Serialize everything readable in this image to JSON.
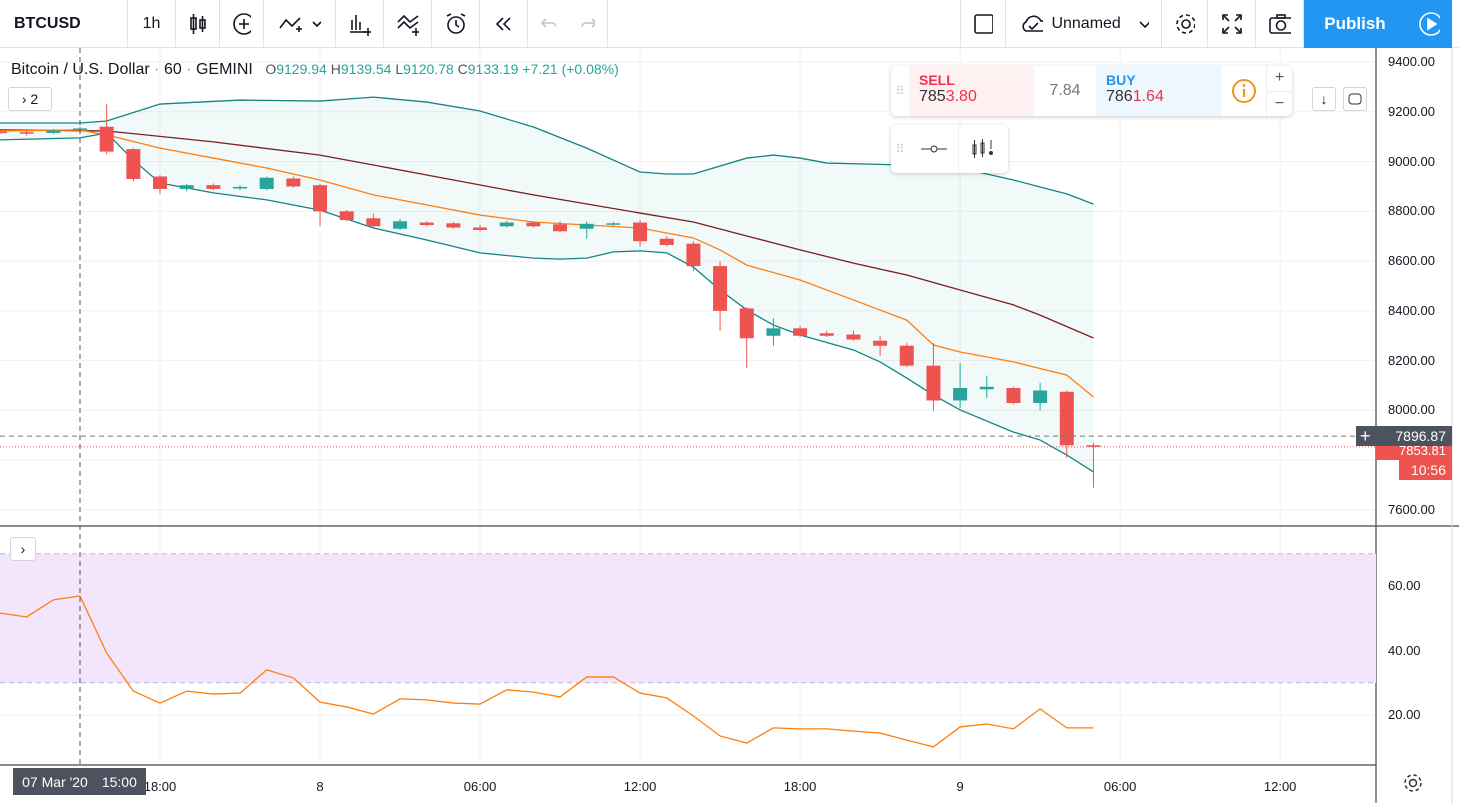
{
  "toolbar": {
    "symbol": "BTCUSD",
    "interval": "1h",
    "layout_name": "Unnamed",
    "publish": "Publish",
    "icons": [
      "candles-icon",
      "add-indicator-icon",
      "compare-icon",
      "chevron-down-icon",
      "indicators-icon",
      "templates-icon",
      "alert-icon",
      "replay-icon",
      "undo-icon",
      "redo-icon",
      "fullscreen-toggle-icon",
      "cloud-icon",
      "gear-icon",
      "expand-icon",
      "camera-icon",
      "play-icon"
    ]
  },
  "legend": {
    "title": "Bitcoin / U.S. Dollar",
    "interval": "60",
    "exchange": "GEMINI",
    "o_label": "O",
    "o": "9129.94",
    "h_label": "H",
    "h": "9139.54",
    "l_label": "L",
    "l": "9120.78",
    "c_label": "C",
    "c": "9133.19",
    "change": "+7.21 (+0.08%)",
    "indicators_collapsed": "2"
  },
  "trade": {
    "sell_label": "SELL",
    "sell_main": "785",
    "sell_hl": "3.80",
    "spread": "7.84",
    "buy_label": "BUY",
    "buy_main": "786",
    "buy_hl": "1.64",
    "plus": "+",
    "minus": "−"
  },
  "price_axis": {
    "labels": [
      "9400.00",
      "9200.00",
      "9000.00",
      "8800.00",
      "8600.00",
      "8400.00",
      "8200.00",
      "8000.00",
      "7600.00"
    ],
    "crosshair_price": "7896.87",
    "last_price": "7853.81",
    "countdown": "10:56"
  },
  "rsi_axis": {
    "labels": [
      "60.00",
      "40.00",
      "20.00"
    ]
  },
  "time_axis": {
    "labels": [
      "18:00",
      "8",
      "06:00",
      "12:00",
      "18:00",
      "9",
      "06:00",
      "12:00"
    ],
    "crosshair_date": "07 Mar '20",
    "crosshair_time": "15:00"
  },
  "colors": {
    "up": "#26a69a",
    "down": "#ef5350",
    "bb": "#138484",
    "basis": "#7b1e1e",
    "ema": "#ff7f0e",
    "rsi": "#ff7f0e",
    "rsi_band": "#f3e5fc",
    "accent": "#2196f3"
  },
  "chart_data": [
    {
      "type": "candlestick",
      "x_unit": "hours since 07 Mar '20 15:00",
      "ylim": [
        7550,
        9450
      ],
      "candles": [
        [
          -3,
          9120,
          9125,
          9112,
          9118
        ],
        [
          -2,
          9118,
          9125,
          9105,
          9112
        ],
        [
          -1,
          9115,
          9130,
          9110,
          9125
        ],
        [
          0,
          9129.94,
          9139.54,
          9120.78,
          9133.19
        ],
        [
          1,
          9140,
          9230,
          9030,
          9040
        ],
        [
          2,
          9050,
          9055,
          8920,
          8930
        ],
        [
          3,
          8940,
          8945,
          8870,
          8890
        ],
        [
          4,
          8890,
          8910,
          8880,
          8905
        ],
        [
          5,
          8905,
          8912,
          8885,
          8890
        ],
        [
          6,
          8892,
          8905,
          8885,
          8898
        ],
        [
          7,
          8890,
          8940,
          8885,
          8935
        ],
        [
          8,
          8932,
          8940,
          8895,
          8900
        ],
        [
          9,
          8905,
          8910,
          8740,
          8800
        ],
        [
          10,
          8800,
          8805,
          8760,
          8765
        ],
        [
          11,
          8772,
          8790,
          8735,
          8740
        ],
        [
          12,
          8730,
          8770,
          8725,
          8760
        ],
        [
          13,
          8755,
          8760,
          8740,
          8745
        ],
        [
          14,
          8752,
          8758,
          8730,
          8735
        ],
        [
          15,
          8735,
          8745,
          8720,
          8725
        ],
        [
          16,
          8740,
          8762,
          8735,
          8755
        ],
        [
          17,
          8755,
          8760,
          8735,
          8740
        ],
        [
          18,
          8748,
          8760,
          8715,
          8720
        ],
        [
          19,
          8730,
          8760,
          8690,
          8750
        ],
        [
          20,
          8748,
          8758,
          8742,
          8752
        ],
        [
          21,
          8755,
          8765,
          8660,
          8680
        ],
        [
          22,
          8690,
          8700,
          8660,
          8665
        ],
        [
          23,
          8670,
          8680,
          8560,
          8580
        ],
        [
          24,
          8580,
          8600,
          8320,
          8400
        ],
        [
          25,
          8410,
          8415,
          8170,
          8290
        ],
        [
          26,
          8300,
          8370,
          8260,
          8330
        ],
        [
          27,
          8330,
          8340,
          8295,
          8300
        ],
        [
          28,
          8310,
          8320,
          8295,
          8300
        ],
        [
          29,
          8305,
          8320,
          8280,
          8285
        ],
        [
          30,
          8280,
          8300,
          8220,
          8260
        ],
        [
          31,
          8260,
          8270,
          8175,
          8180
        ],
        [
          32,
          8180,
          8270,
          8000,
          8040
        ],
        [
          33,
          8040,
          8190,
          8010,
          8090
        ],
        [
          34,
          8085,
          8140,
          8050,
          8095
        ],
        [
          35,
          8090,
          8095,
          8025,
          8030
        ],
        [
          36,
          8030,
          8110,
          8000,
          8080
        ],
        [
          37,
          8075,
          8080,
          7810,
          7860
        ],
        [
          38,
          7860,
          7870,
          7690,
          7853.81
        ]
      ],
      "series": [
        {
          "name": "BB upper",
          "points": [
            [
              -3,
              9155
            ],
            [
              0,
              9155
            ],
            [
              1,
              9163
            ],
            [
              3,
              9231
            ],
            [
              6,
              9247
            ],
            [
              9,
              9243
            ],
            [
              11,
              9259
            ],
            [
              13,
              9239
            ],
            [
              15,
              9203
            ],
            [
              17,
              9139
            ],
            [
              19,
              9054
            ],
            [
              21,
              8958
            ],
            [
              22,
              8950
            ],
            [
              23,
              8950
            ],
            [
              25,
              9014
            ],
            [
              26,
              9026
            ],
            [
              27,
              9014
            ],
            [
              28,
              8994
            ],
            [
              31,
              8986
            ],
            [
              33,
              8974
            ],
            [
              35,
              8926
            ],
            [
              36,
              8898
            ],
            [
              37,
              8870
            ],
            [
              38,
              8829
            ]
          ]
        },
        {
          "name": "BB lower",
          "points": [
            [
              -3,
              9087
            ],
            [
              0,
              9095
            ],
            [
              1,
              9115
            ],
            [
              2,
              9006
            ],
            [
              3,
              8914
            ],
            [
              5,
              8874
            ],
            [
              7,
              8846
            ],
            [
              9,
              8805
            ],
            [
              11,
              8733
            ],
            [
              13,
              8685
            ],
            [
              15,
              8633
            ],
            [
              17,
              8612
            ],
            [
              18,
              8608
            ],
            [
              19,
              8612
            ],
            [
              20,
              8637
            ],
            [
              21,
              8641
            ],
            [
              22,
              8633
            ],
            [
              23,
              8576
            ],
            [
              24,
              8484
            ],
            [
              25,
              8404
            ],
            [
              26,
              8343
            ],
            [
              27,
              8303
            ],
            [
              29,
              8243
            ],
            [
              30,
              8195
            ],
            [
              31,
              8130
            ],
            [
              32,
              8062
            ],
            [
              33,
              8002
            ],
            [
              35,
              7913
            ],
            [
              36,
              7881
            ],
            [
              37,
              7821
            ],
            [
              38,
              7753
            ]
          ]
        },
        {
          "name": "BB basis",
          "points": [
            [
              -3,
              9127
            ],
            [
              1,
              9123
            ],
            [
              5,
              9079
            ],
            [
              9,
              9026
            ],
            [
              13,
              8946
            ],
            [
              17,
              8866
            ],
            [
              21,
              8793
            ],
            [
              23,
              8757
            ],
            [
              25,
              8701
            ],
            [
              27,
              8645
            ],
            [
              29,
              8592
            ],
            [
              31,
              8544
            ],
            [
              33,
              8484
            ],
            [
              35,
              8424
            ],
            [
              36,
              8383
            ],
            [
              38,
              8291
            ]
          ]
        },
        {
          "name": "EMA",
          "points": [
            [
              -3,
              9123
            ],
            [
              0,
              9127
            ],
            [
              1,
              9107
            ],
            [
              3,
              9054
            ],
            [
              5,
              9014
            ],
            [
              7,
              8974
            ],
            [
              9,
              8926
            ],
            [
              11,
              8866
            ],
            [
              13,
              8826
            ],
            [
              15,
              8785
            ],
            [
              17,
              8757
            ],
            [
              19,
              8745
            ],
            [
              21,
              8733
            ],
            [
              23,
              8693
            ],
            [
              24,
              8645
            ],
            [
              25,
              8584
            ],
            [
              27,
              8524
            ],
            [
              29,
              8444
            ],
            [
              31,
              8363
            ],
            [
              32,
              8263
            ],
            [
              33,
              8235
            ],
            [
              35,
              8195
            ],
            [
              37,
              8142
            ],
            [
              38,
              8054
            ]
          ]
        }
      ]
    },
    {
      "type": "line",
      "name": "RSI",
      "ylim": [
        0,
        80
      ],
      "band": [
        30,
        70
      ],
      "x": [
        -3,
        -2,
        -1,
        0,
        1,
        2,
        3,
        4,
        5,
        6,
        7,
        8,
        9,
        10,
        11,
        12,
        13,
        14,
        15,
        16,
        17,
        18,
        19,
        20,
        21,
        22,
        23,
        24,
        25,
        26,
        27,
        28,
        29,
        30,
        31,
        32,
        33,
        34,
        35,
        36,
        37,
        38
      ],
      "values": [
        51.6,
        50.4,
        55.7,
        56.9,
        39.2,
        27.4,
        23.7,
        27.4,
        26.5,
        26.8,
        34.0,
        31.5,
        24.0,
        22.5,
        20.3,
        25.0,
        24.7,
        23.7,
        23.4,
        27.8,
        27.1,
        25.6,
        31.8,
        31.8,
        26.8,
        25.3,
        19.7,
        13.5,
        11.3,
        16.0,
        15.7,
        15.7,
        15.0,
        14.4,
        12.2,
        10.1,
        16.3,
        17.2,
        15.7,
        21.9,
        16.0,
        16.0
      ]
    }
  ]
}
